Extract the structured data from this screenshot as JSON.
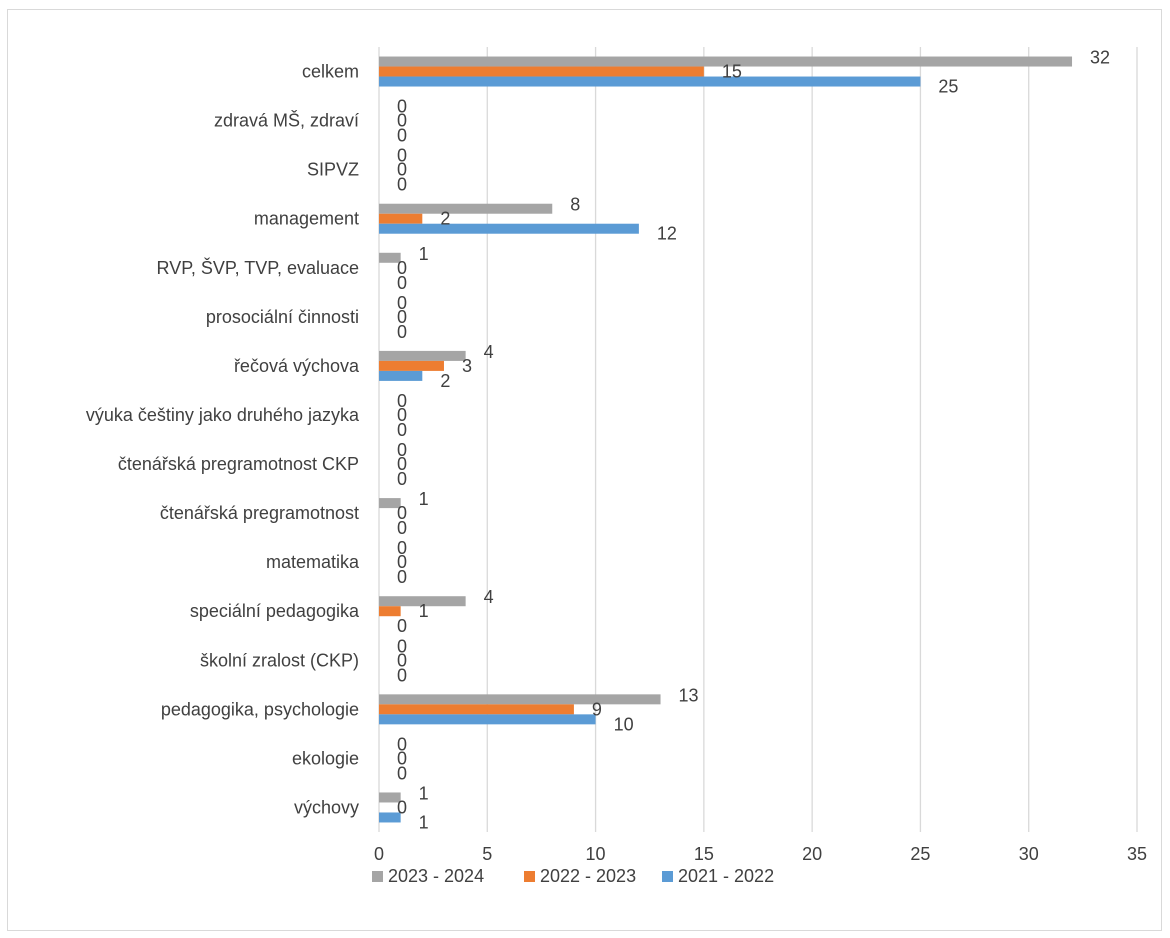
{
  "chart_data": {
    "type": "bar",
    "orientation": "horizontal",
    "title": "",
    "xlabel": "",
    "ylabel": "",
    "xlim": [
      0,
      35
    ],
    "x_ticks": [
      "0",
      "5",
      "10",
      "15",
      "20",
      "25",
      "30",
      "35"
    ],
    "grid": "vertical",
    "legend_position": "bottom",
    "categories": [
      "celkem",
      "zdravá MŠ, zdraví",
      "SIPVZ",
      "management",
      "RVP, ŠVP, TVP, evaluace",
      "prosociální činnosti",
      "řečová výchova",
      "výuka češtiny jako druhého jazyka",
      "čtenářská pregramotnost CKP",
      "čtenářská pregramotnost",
      "matematika",
      "speciální pedagogika",
      "školní zralost (CKP)",
      "pedagogika, psychologie",
      "ekologie",
      "výchovy"
    ],
    "series": [
      {
        "name": "2023 - 2024",
        "color": "#a5a5a5",
        "values": [
          32,
          0,
          0,
          8,
          1,
          0,
          4,
          0,
          0,
          1,
          0,
          4,
          0,
          13,
          0,
          1
        ]
      },
      {
        "name": "2022 - 2023",
        "color": "#ed7d31",
        "values": [
          15,
          0,
          0,
          2,
          0,
          0,
          3,
          0,
          0,
          0,
          0,
          1,
          0,
          9,
          0,
          0
        ]
      },
      {
        "name": "2021 - 2022",
        "color": "#5b9bd5",
        "values": [
          25,
          0,
          0,
          12,
          0,
          0,
          2,
          0,
          0,
          0,
          0,
          0,
          0,
          10,
          0,
          1
        ]
      }
    ]
  }
}
